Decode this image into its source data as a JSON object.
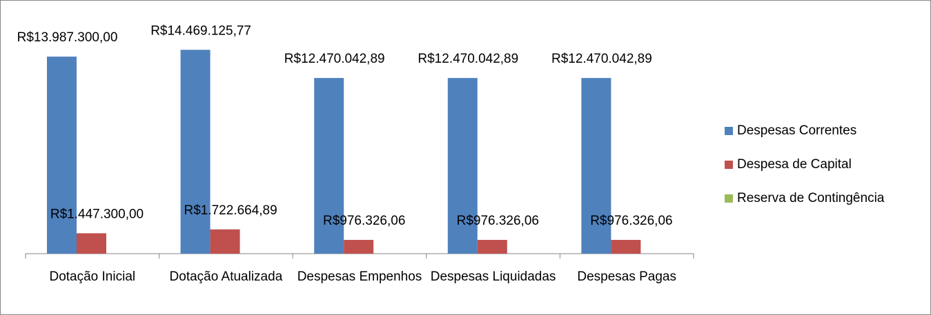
{
  "chart_data": {
    "type": "bar",
    "categories": [
      "Dotação Inicial",
      "Dotação Atualizada",
      "Despesas Empenhos",
      "Despesas Liquidadas",
      "Despesas Pagas"
    ],
    "series": [
      {
        "name": "Despesas Correntes",
        "color": "#4f81bd",
        "values": [
          13987300.0,
          14469125.77,
          12470042.89,
          12470042.89,
          12470042.89
        ],
        "value_labels": [
          "R$13.987.300,00",
          "R$14.469.125,77",
          "R$12.470.042,89",
          "R$12.470.042,89",
          "R$12.470.042,89"
        ]
      },
      {
        "name": "Despesa de Capital",
        "color": "#c0504d",
        "values": [
          1447300.0,
          1722664.89,
          976326.06,
          976326.06,
          976326.06
        ],
        "value_labels": [
          "R$1.447.300,00",
          "R$1.722.664,89",
          "R$976.326,06",
          "R$976.326,06",
          "R$976.326,06"
        ]
      },
      {
        "name": "Reserva de Contingência",
        "color": "#9bbb59",
        "values": [
          null,
          null,
          null,
          null,
          null
        ]
      }
    ],
    "ylim": [
      0,
      16000000
    ],
    "legend": "right"
  }
}
